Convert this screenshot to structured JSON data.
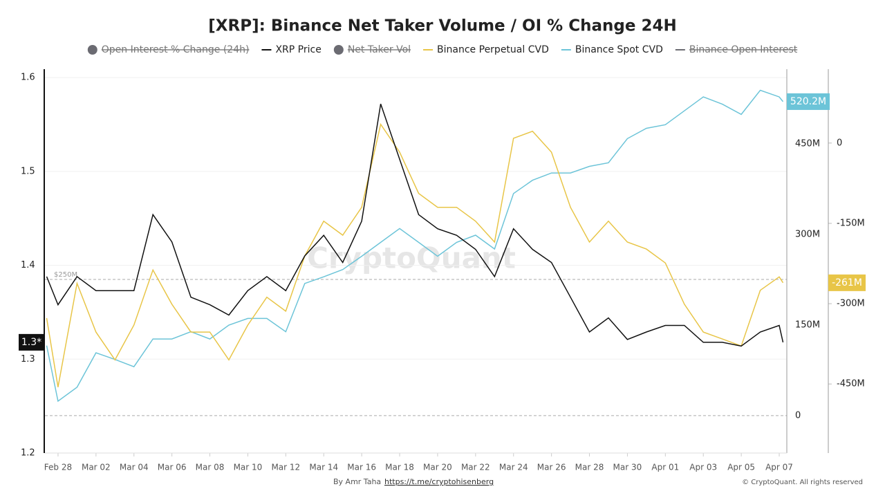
{
  "chart_data": {
    "type": "line",
    "title": "[XRP]: Binance Net Taker Volume / OI % Change 24H",
    "hidden_legend": [
      {
        "name": "Open Interest % Change (24h)",
        "marker": "circle",
        "color": "#6b6b72"
      },
      {
        "name": "Net Taker Vol",
        "marker": "circle",
        "color": "#6b6b72"
      },
      {
        "name": "Binance Open Interest",
        "marker": "line",
        "color": "#6b6b72"
      }
    ],
    "x": [
      -0.6,
      0,
      1,
      2,
      3,
      4,
      5,
      6,
      7,
      8,
      9,
      10,
      11,
      12,
      13,
      14,
      15,
      16,
      17,
      18,
      19,
      20,
      21,
      22,
      23,
      24,
      25,
      26,
      27,
      28,
      29,
      30,
      31,
      32,
      33,
      34,
      35,
      36,
      37,
      38,
      38.2
    ],
    "xlim": [
      -0.69,
      38.4
    ],
    "xticks": [
      {
        "value": 0,
        "label": "Feb 28"
      },
      {
        "value": 2,
        "label": "Mar 02"
      },
      {
        "value": 4,
        "label": "Mar 04"
      },
      {
        "value": 6,
        "label": "Mar 06"
      },
      {
        "value": 8,
        "label": "Mar 08"
      },
      {
        "value": 10,
        "label": "Mar 10"
      },
      {
        "value": 12,
        "label": "Mar 12"
      },
      {
        "value": 14,
        "label": "Mar 14"
      },
      {
        "value": 16,
        "label": "Mar 16"
      },
      {
        "value": 18,
        "label": "Mar 18"
      },
      {
        "value": 20,
        "label": "Mar 20"
      },
      {
        "value": 22,
        "label": "Mar 22"
      },
      {
        "value": 24,
        "label": "Mar 24"
      },
      {
        "value": 26,
        "label": "Mar 26"
      },
      {
        "value": 28,
        "label": "Mar 28"
      },
      {
        "value": 30,
        "label": "Mar 30"
      },
      {
        "value": 32,
        "label": "Apr 01"
      },
      {
        "value": 34,
        "label": "Apr 03"
      },
      {
        "value": 36,
        "label": "Apr 05"
      },
      {
        "value": 38,
        "label": "Apr 07"
      }
    ],
    "ylim": [
      1.2,
      1.609
    ],
    "yticks": [
      1.2,
      1.3,
      1.4,
      1.5,
      1.6
    ],
    "y2lim": [
      -62,
      574
    ],
    "y2ticks": [
      {
        "value": 0,
        "label": "0"
      },
      {
        "value": 150,
        "label": "150M"
      },
      {
        "value": 300,
        "label": "300M"
      },
      {
        "value": 450,
        "label": "450M"
      }
    ],
    "y3lim": [
      -579,
      138
    ],
    "y3ticks": [
      {
        "value": 0,
        "label": "0"
      },
      {
        "value": -150,
        "label": "-150M"
      },
      {
        "value": -300,
        "label": "-300M"
      },
      {
        "value": -450,
        "label": "-450M"
      }
    ],
    "grid": true,
    "reference_line": {
      "value": 1.385,
      "label": "$250M"
    },
    "series": [
      {
        "name": "XRP Price",
        "color": "#111111",
        "axis": "y",
        "last_value_label": "1.3*",
        "values": [
          1.388,
          1.358,
          1.388,
          1.373,
          1.373,
          1.373,
          1.454,
          1.425,
          1.366,
          1.358,
          1.347,
          1.373,
          1.388,
          1.373,
          1.41,
          1.432,
          1.403,
          1.447,
          1.572,
          1.513,
          1.454,
          1.439,
          1.432,
          1.417,
          1.388,
          1.439,
          1.417,
          1.403,
          1.366,
          1.329,
          1.344,
          1.321,
          1.329,
          1.336,
          1.336,
          1.318,
          1.318,
          1.314,
          1.329,
          1.336,
          1.318
        ]
      },
      {
        "name": "Binance Perpetual CVD",
        "color": "#e8c547",
        "axis": "y3",
        "last_value_label": "-261M",
        "values": [
          -327,
          -456,
          -262,
          -353,
          -405,
          -340,
          -237,
          -301,
          -353,
          -353,
          -405,
          -340,
          -288,
          -314,
          -211,
          -146,
          -172,
          -120,
          35,
          -17,
          -94,
          -120,
          -120,
          -146,
          -185,
          9,
          22,
          -17,
          -120,
          -185,
          -146,
          -185,
          -198,
          -224,
          -301,
          -353,
          -366,
          -379,
          -275,
          -250,
          -261
        ]
      },
      {
        "name": "Binance Spot CVD",
        "color": "#6cc4d8",
        "axis": "y2",
        "last_value_label": "520.2M",
        "values": [
          116,
          24,
          47,
          104,
          93,
          81,
          127,
          127,
          139,
          127,
          150,
          161,
          161,
          139,
          219,
          230,
          242,
          264,
          287,
          310,
          287,
          264,
          287,
          299,
          276,
          368,
          390,
          402,
          402,
          413,
          419,
          459,
          476,
          482,
          505,
          528,
          516,
          499,
          539,
          528,
          520.2
        ]
      }
    ],
    "watermark": "CryptoQuant",
    "footer": {
      "byline": "By Amr Taha",
      "link": "https://t.me/cryptohisenberg",
      "copyright": "© CryptoQuant. All rights reserved"
    }
  }
}
